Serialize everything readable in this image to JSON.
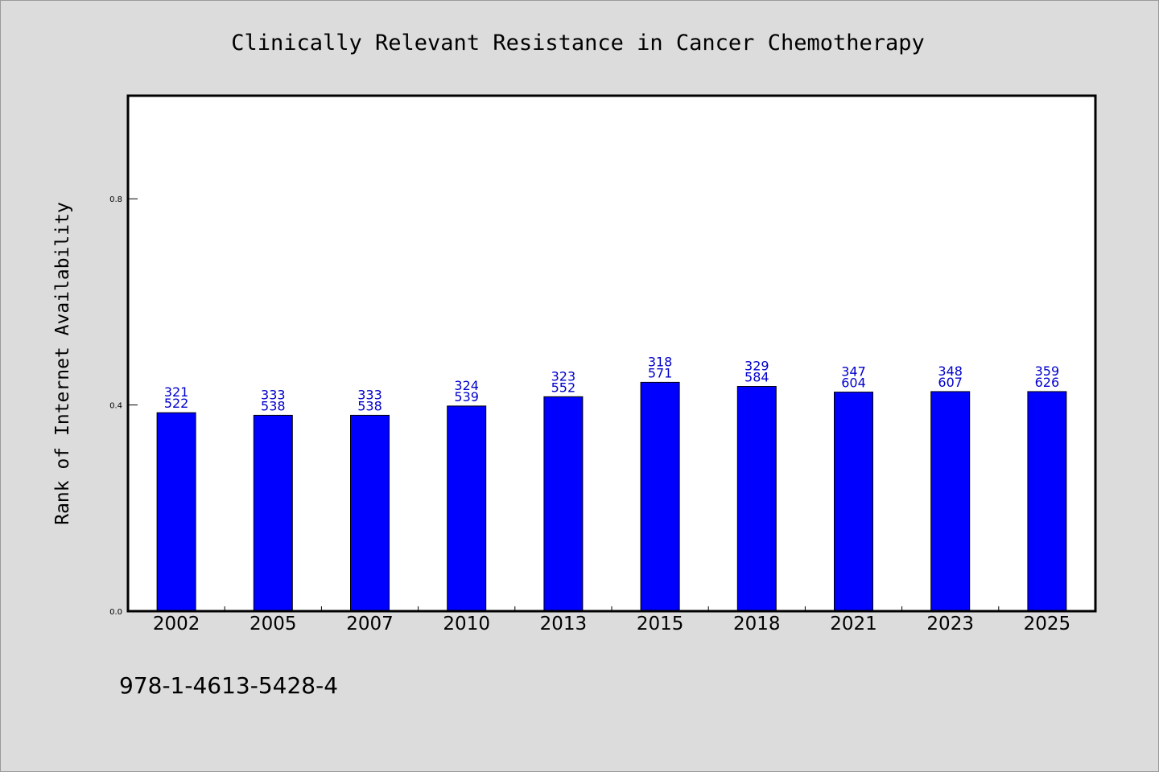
{
  "chart_data": {
    "type": "bar",
    "title": "Clinically Relevant Resistance in Cancer Chemotherapy",
    "ylabel": "Rank of Internet Availability",
    "xlabel": "",
    "categories": [
      "2002",
      "2005",
      "2007",
      "2010",
      "2013",
      "2015",
      "2018",
      "2021",
      "2023",
      "2025"
    ],
    "values": [
      0.385,
      0.38,
      0.38,
      0.398,
      0.416,
      0.444,
      0.436,
      0.425,
      0.426,
      0.426
    ],
    "data_labels": [
      {
        "top": "321",
        "bottom": "522"
      },
      {
        "top": "333",
        "bottom": "538"
      },
      {
        "top": "333",
        "bottom": "538"
      },
      {
        "top": "324",
        "bottom": "539"
      },
      {
        "top": "323",
        "bottom": "552"
      },
      {
        "top": "318",
        "bottom": "571"
      },
      {
        "top": "329",
        "bottom": "584"
      },
      {
        "top": "347",
        "bottom": "604"
      },
      {
        "top": "348",
        "bottom": "607"
      },
      {
        "top": "359",
        "bottom": "626"
      }
    ],
    "ylim": [
      0,
      1.0
    ],
    "yticks": [
      0.0,
      0.4,
      0.8
    ],
    "ytick_labels": [
      "0.0",
      "0.4",
      "0.8"
    ],
    "grid": false,
    "bar_color": "#0000ff",
    "label_color": "#0000cc"
  },
  "footer": {
    "isbn": "978-1-4613-5428-4"
  }
}
